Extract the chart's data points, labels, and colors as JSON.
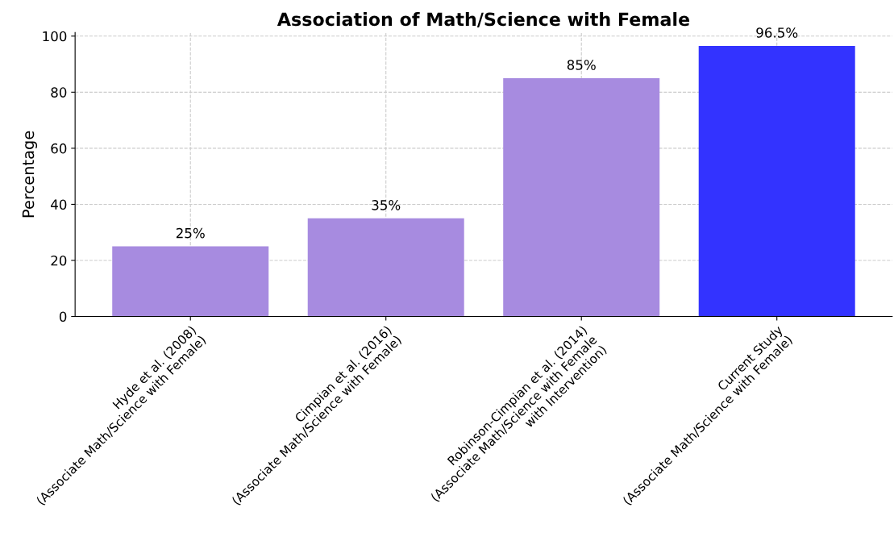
{
  "chart_data": {
    "type": "bar",
    "title": "Association of Math/Science with Female",
    "ylabel": "Percentage",
    "categories": [
      "Hyde et al. (2008)\n(Associate Math/Science with Female)",
      "Cimpian et al. (2016)\n(Associate Math/Science with Female)",
      "Robinson-Cimpian et al. (2014)\n(Associate Math/Science with Female\nwith Intervention)",
      "Current Study\n(Associate Math/Science with Female)"
    ],
    "values": [
      25,
      35,
      85,
      96.5
    ],
    "colors": [
      "#a78be0",
      "#a78be0",
      "#a78be0",
      "#3333ff"
    ],
    "value_labels": [
      "25%",
      "35%",
      "85%",
      "96.5%"
    ],
    "ylim": [
      0,
      101.3
    ],
    "yticks": [
      0,
      20,
      40,
      60,
      80,
      100
    ],
    "grid": true
  }
}
